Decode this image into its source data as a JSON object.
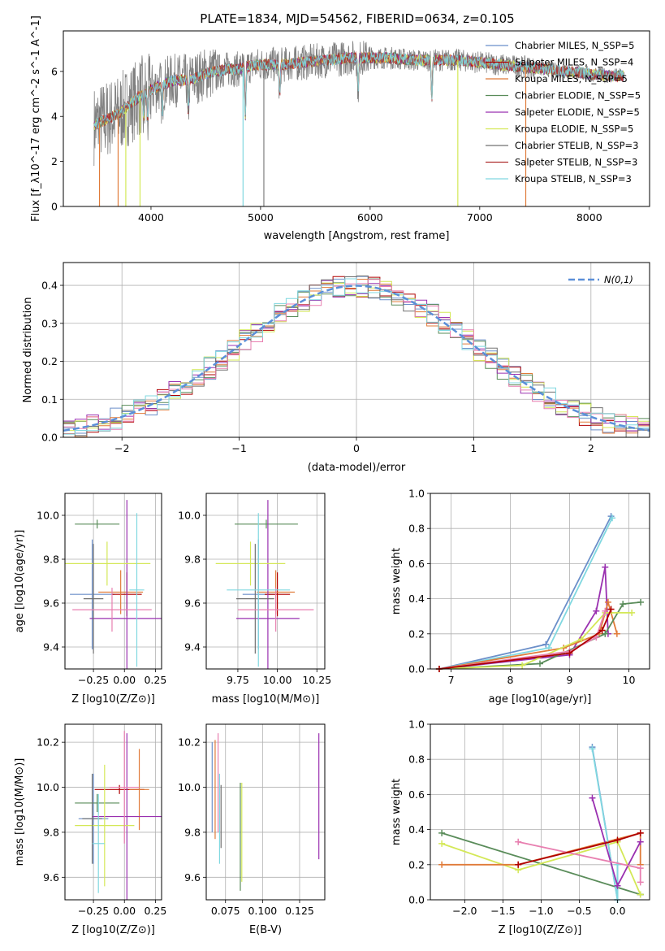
{
  "figure_title": "PLATE=1834, MJD=54562, FIBERID=0634, z=0.105",
  "colors": {
    "spec_data": "#808080",
    "chabrier_miles": "#6b8fc9",
    "salpeter_miles": "#b00000",
    "kroupa_miles": "#e07b39",
    "chabrier_elodie": "#5a8c5a",
    "salpeter_elodie": "#9a30b0",
    "kroupa_elodie": "#d4e857",
    "chabrier_stelib": "#707070",
    "salpeter_stelib": "#b03030",
    "kroupa_stelib": "#80d8e0",
    "gaussian": "#5b8fd8",
    "pink": "#e87fb0",
    "yellowgreen": "#c9e86a"
  },
  "chart_data": [
    {
      "type": "line",
      "id": "spectrum",
      "xlabel": "wavelength [Angstrom, rest frame]",
      "ylabel": "Flux [f_λ10^-17 erg cm^-2 s^-1 A^-1]",
      "xlim": [
        3200,
        8550
      ],
      "ylim": [
        0,
        7.8
      ],
      "xticks": [
        4000,
        5000,
        6000,
        7000,
        8000
      ],
      "yticks": [
        0,
        2,
        4,
        6
      ],
      "grid": false,
      "legend_position": "top-right",
      "series": [
        {
          "name": "Chabrier MILES, N_SSP=5",
          "color_key": "chabrier_miles"
        },
        {
          "name": "Salpeter MILES, N_SSP=4",
          "color_key": "salpeter_miles"
        },
        {
          "name": "Kroupa MILES, N_SSP=5",
          "color_key": "kroupa_miles"
        },
        {
          "name": "Chabrier ELODIE, N_SSP=5",
          "color_key": "chabrier_elodie"
        },
        {
          "name": "Salpeter ELODIE, N_SSP=5",
          "color_key": "salpeter_elodie"
        },
        {
          "name": "Kroupa ELODIE, N_SSP=5",
          "color_key": "kroupa_elodie"
        },
        {
          "name": "Chabrier STELIB, N_SSP=3",
          "color_key": "chabrier_stelib"
        },
        {
          "name": "Salpeter STELIB, N_SSP=3",
          "color_key": "salpeter_stelib"
        },
        {
          "name": "Kroupa STELIB, N_SSP=3",
          "color_key": "kroupa_stelib"
        }
      ],
      "continuum": {
        "x": [
          3480,
          3600,
          3700,
          3800,
          3900,
          4000,
          4100,
          4200,
          4300,
          4400,
          4500,
          4600,
          4700,
          4800,
          4850,
          5000,
          5200,
          5400,
          5600,
          5800,
          6000,
          6200,
          6400,
          6600,
          6800,
          7000,
          7200,
          7400,
          7600,
          7800,
          8000,
          8200,
          8320
        ],
        "y": [
          3.6,
          3.9,
          4.1,
          4.5,
          4.9,
          5.2,
          5.4,
          5.6,
          5.6,
          5.7,
          5.9,
          6.0,
          6.1,
          6.1,
          6.2,
          6.3,
          6.3,
          6.4,
          6.5,
          6.6,
          6.6,
          6.6,
          6.5,
          6.5,
          6.5,
          6.4,
          6.3,
          6.2,
          6.1,
          6.0,
          5.9,
          5.8,
          5.8
        ]
      }
    },
    {
      "type": "line",
      "id": "residuals",
      "xlabel": "(data-model)/error",
      "ylabel": "Normed distribution",
      "xlim": [
        -2.5,
        2.5
      ],
      "ylim": [
        0,
        0.46
      ],
      "xticks": [
        -2,
        -1,
        0,
        1,
        2
      ],
      "yticks": [
        0.0,
        0.1,
        0.2,
        0.3,
        0.4
      ],
      "grid": true,
      "legend_position": "top-right",
      "legend_label": "N(0,1)",
      "bin_width": 0.1,
      "series_color_keys": [
        "chabrier_miles",
        "salpeter_miles",
        "kroupa_miles",
        "chabrier_elodie",
        "salpeter_elodie",
        "kroupa_elodie",
        "chabrier_stelib",
        "pink",
        "kroupa_stelib"
      ]
    },
    {
      "type": "scatter",
      "id": "age_vs_Z",
      "xlabel": "Z [log10(Z/Z⊙)]",
      "ylabel": "age [log10(age/yr)]",
      "xlim": [
        -0.48,
        0.3
      ],
      "ylim": [
        9.3,
        10.1
      ],
      "xticks": [
        -0.25,
        0.0,
        0.25
      ],
      "xticklabels": [
        "−0.25",
        "0.00",
        "0.25"
      ],
      "yticks": [
        9.4,
        9.6,
        9.8,
        10.0
      ],
      "grid": true,
      "points": [
        {
          "x": -0.26,
          "y": 9.64,
          "xerr": 0.18,
          "yerr": 0.25,
          "color_key": "chabrier_miles"
        },
        {
          "x": 0.02,
          "y": 9.64,
          "xerr": 0.12,
          "yerr": 0.1,
          "color_key": "salpeter_miles"
        },
        {
          "x": -0.03,
          "y": 9.65,
          "xerr": 0.18,
          "yerr": 0.1,
          "color_key": "kroupa_miles"
        },
        {
          "x": -0.22,
          "y": 9.96,
          "xerr": 0.18,
          "yerr": 0.02,
          "color_key": "chabrier_elodie"
        },
        {
          "x": 0.02,
          "y": 9.53,
          "xerr": 0.3,
          "yerr": 0.54,
          "color_key": "salpeter_elodie"
        },
        {
          "x": -0.14,
          "y": 9.78,
          "xerr": 0.35,
          "yerr": 0.1,
          "color_key": "kroupa_elodie"
        },
        {
          "x": -0.25,
          "y": 9.62,
          "xerr": 0.08,
          "yerr": 0.25,
          "color_key": "chabrier_stelib"
        },
        {
          "x": -0.1,
          "y": 9.57,
          "xerr": 0.32,
          "yerr": 0.1,
          "color_key": "pink"
        },
        {
          "x": 0.1,
          "y": 9.66,
          "xerr": 0.06,
          "yerr": 0.35,
          "color_key": "kroupa_stelib"
        }
      ]
    },
    {
      "type": "scatter",
      "id": "age_vs_mass",
      "xlabel": "mass [log10(M/M⊙)]",
      "xlim": [
        9.55,
        10.3
      ],
      "ylim": [
        9.3,
        10.1
      ],
      "xticks": [
        9.75,
        10.0,
        10.25
      ],
      "xticklabels": [
        "9.75",
        "10.00",
        "10.25"
      ],
      "yticks": [
        9.4,
        9.6,
        9.8,
        10.0
      ],
      "grid": true,
      "points": [
        {
          "x": 9.88,
          "y": 9.64,
          "xerr": 0.1,
          "yerr": 0.25,
          "color_key": "chabrier_miles"
        },
        {
          "x": 10.0,
          "y": 9.64,
          "xerr": 0.08,
          "yerr": 0.1,
          "color_key": "salpeter_miles"
        },
        {
          "x": 9.99,
          "y": 9.65,
          "xerr": 0.12,
          "yerr": 0.1,
          "color_key": "kroupa_miles"
        },
        {
          "x": 9.93,
          "y": 9.96,
          "xerr": 0.2,
          "yerr": 0.02,
          "color_key": "chabrier_elodie"
        },
        {
          "x": 9.94,
          "y": 9.53,
          "xerr": 0.2,
          "yerr": 0.54,
          "color_key": "salpeter_elodie"
        },
        {
          "x": 9.83,
          "y": 9.78,
          "xerr": 0.22,
          "yerr": 0.1,
          "color_key": "kroupa_elodie"
        },
        {
          "x": 9.86,
          "y": 9.62,
          "xerr": 0.12,
          "yerr": 0.25,
          "color_key": "chabrier_stelib"
        },
        {
          "x": 9.99,
          "y": 9.57,
          "xerr": 0.24,
          "yerr": 0.1,
          "color_key": "pink"
        },
        {
          "x": 9.88,
          "y": 9.66,
          "xerr": 0.2,
          "yerr": 0.35,
          "color_key": "kroupa_stelib"
        }
      ]
    },
    {
      "type": "line",
      "id": "weight_vs_age",
      "xlabel": "age [log10(age/yr)]",
      "ylabel": "mass weight",
      "xlim": [
        6.65,
        10.35
      ],
      "ylim": [
        0,
        1.0
      ],
      "xticks": [
        7,
        8,
        9,
        10
      ],
      "yticks": [
        0.0,
        0.2,
        0.4,
        0.6,
        0.8,
        1.0
      ],
      "grid": true,
      "series": [
        {
          "color_key": "chabrier_miles",
          "x": [
            6.8,
            8.6,
            9.7
          ],
          "y": [
            0.0,
            0.14,
            0.87
          ]
        },
        {
          "color_key": "kroupa_stelib",
          "x": [
            6.8,
            8.65,
            9.72
          ],
          "y": [
            0.0,
            0.12,
            0.86
          ]
        },
        {
          "color_key": "salpeter_elodie",
          "x": [
            6.8,
            9.0,
            9.45,
            9.6,
            9.65
          ],
          "y": [
            0.0,
            0.08,
            0.33,
            0.58,
            0.2
          ]
        },
        {
          "color_key": "kroupa_miles",
          "x": [
            6.8,
            8.9,
            9.5,
            9.65,
            9.8
          ],
          "y": [
            0.0,
            0.12,
            0.2,
            0.38,
            0.2
          ]
        },
        {
          "color_key": "chabrier_elodie",
          "x": [
            6.8,
            8.5,
            9.6,
            9.9,
            10.2
          ],
          "y": [
            0.0,
            0.03,
            0.2,
            0.37,
            0.38
          ]
        },
        {
          "color_key": "kroupa_elodie",
          "x": [
            6.8,
            8.2,
            9.2,
            9.6,
            10.05
          ],
          "y": [
            0.0,
            0.02,
            0.17,
            0.32,
            0.32
          ]
        },
        {
          "color_key": "pink",
          "x": [
            6.8,
            9.0,
            9.45,
            9.6
          ],
          "y": [
            0.0,
            0.1,
            0.18,
            0.33
          ]
        },
        {
          "color_key": "salpeter_miles",
          "x": [
            6.8,
            9.0,
            9.55,
            9.7
          ],
          "y": [
            0.0,
            0.09,
            0.22,
            0.34
          ]
        }
      ]
    },
    {
      "type": "scatter",
      "id": "mass_vs_Z",
      "xlabel": "Z [log10(Z/Z⊙)]",
      "ylabel": "mass [log10(M/M⊙)]",
      "xlim": [
        -0.48,
        0.3
      ],
      "ylim": [
        9.5,
        10.28
      ],
      "xticks": [
        -0.25,
        0.0,
        0.25
      ],
      "xticklabels": [
        "−0.25",
        "0.00",
        "0.25"
      ],
      "yticks": [
        9.6,
        9.8,
        10.0,
        10.2
      ],
      "grid": true,
      "points": [
        {
          "x": -0.25,
          "y": 9.86,
          "xerr": 0.12,
          "yerr": 0.2,
          "color_key": "chabrier_miles"
        },
        {
          "x": -0.04,
          "y": 9.99,
          "xerr": 0.2,
          "yerr": 0.02,
          "color_key": "salpeter_miles"
        },
        {
          "x": 0.12,
          "y": 9.99,
          "xerr": 0.08,
          "yerr": 0.18,
          "color_key": "kroupa_miles"
        },
        {
          "x": -0.22,
          "y": 9.93,
          "xerr": 0.18,
          "yerr": 0.04,
          "color_key": "chabrier_elodie"
        },
        {
          "x": 0.02,
          "y": 9.87,
          "xerr": 0.28,
          "yerr": 0.37,
          "color_key": "salpeter_elodie"
        },
        {
          "x": -0.16,
          "y": 9.83,
          "xerr": 0.24,
          "yerr": 0.27,
          "color_key": "kroupa_elodie"
        },
        {
          "x": -0.26,
          "y": 9.86,
          "xerr": 0.08,
          "yerr": 0.2,
          "color_key": "chabrier_stelib"
        },
        {
          "x": 0.0,
          "y": 10.0,
          "xerr": 0.12,
          "yerr": 0.25,
          "color_key": "pink"
        },
        {
          "x": -0.21,
          "y": 9.75,
          "xerr": 0.05,
          "yerr": 0.22,
          "color_key": "kroupa_stelib"
        }
      ]
    },
    {
      "type": "scatter",
      "id": "mass_vs_ebv",
      "xlabel": "E(B-V)",
      "xlim": [
        0.062,
        0.142
      ],
      "ylim": [
        9.5,
        10.28
      ],
      "xticks": [
        0.075,
        0.1,
        0.125
      ],
      "xticklabels": [
        "0.075",
        "0.100",
        "0.125"
      ],
      "yticks": [
        9.6,
        9.8,
        10.0,
        10.2
      ],
      "grid": true,
      "points": [
        {
          "x": 0.066,
          "y": 10.0,
          "yerr": 0.2,
          "color_key": "chabrier_miles"
        },
        {
          "x": 0.068,
          "y": 9.99,
          "yerr": 0.22,
          "color_key": "kroupa_miles"
        },
        {
          "x": 0.07,
          "y": 10.02,
          "yerr": 0.22,
          "color_key": "pink"
        },
        {
          "x": 0.071,
          "y": 9.86,
          "yerr": 0.2,
          "color_key": "kroupa_stelib"
        },
        {
          "x": 0.072,
          "y": 9.87,
          "yerr": 0.14,
          "color_key": "chabrier_stelib"
        },
        {
          "x": 0.085,
          "y": 9.78,
          "yerr": 0.24,
          "color_key": "chabrier_elodie"
        },
        {
          "x": 0.086,
          "y": 9.8,
          "yerr": 0.22,
          "color_key": "kroupa_elodie"
        },
        {
          "x": 0.138,
          "y": 9.96,
          "yerr": 0.28,
          "color_key": "salpeter_elodie"
        }
      ]
    },
    {
      "type": "line",
      "id": "weight_vs_Z",
      "xlabel": "Z [log10(Z/Z⊙)]",
      "ylabel": "mass weight",
      "xlim": [
        -2.45,
        0.42
      ],
      "ylim": [
        0,
        1.0
      ],
      "xticks": [
        -2.0,
        -1.5,
        -1.0,
        -0.5,
        0.0
      ],
      "xticklabels": [
        "−2.0",
        "−1.5",
        "−1.0",
        "−0.5",
        "0.0"
      ],
      "yticks": [
        0.0,
        0.2,
        0.4,
        0.6,
        0.8,
        1.0
      ],
      "grid": true,
      "series": [
        {
          "color_key": "chabrier_elodie",
          "x": [
            -2.3,
            0.3,
            0.3
          ],
          "y": [
            0.38,
            0.03,
            0.03
          ]
        },
        {
          "color_key": "kroupa_elodie",
          "x": [
            -2.3,
            -1.3,
            0.0,
            0.3
          ],
          "y": [
            0.32,
            0.17,
            0.33,
            0.03
          ]
        },
        {
          "color_key": "kroupa_miles",
          "x": [
            -2.3,
            -1.3,
            0.3,
            0.3
          ],
          "y": [
            0.2,
            0.2,
            0.38,
            0.2
          ]
        },
        {
          "color_key": "chabrier_miles",
          "x": [
            -0.33,
            0.0,
            0.0
          ],
          "y": [
            0.87,
            0.0,
            0.2
          ]
        },
        {
          "color_key": "kroupa_stelib",
          "x": [
            -0.33,
            0.0,
            0.0
          ],
          "y": [
            0.86,
            0.0,
            0.2
          ]
        },
        {
          "color_key": "salpeter_elodie",
          "x": [
            -0.33,
            0.0,
            0.3
          ],
          "y": [
            0.58,
            0.08,
            0.33
          ]
        },
        {
          "color_key": "pink",
          "x": [
            -1.3,
            0.3,
            0.3
          ],
          "y": [
            0.33,
            0.18,
            0.1
          ]
        },
        {
          "color_key": "salpeter_miles",
          "x": [
            -1.3,
            0.0,
            0.3
          ],
          "y": [
            0.2,
            0.34,
            0.38
          ]
        }
      ]
    }
  ]
}
